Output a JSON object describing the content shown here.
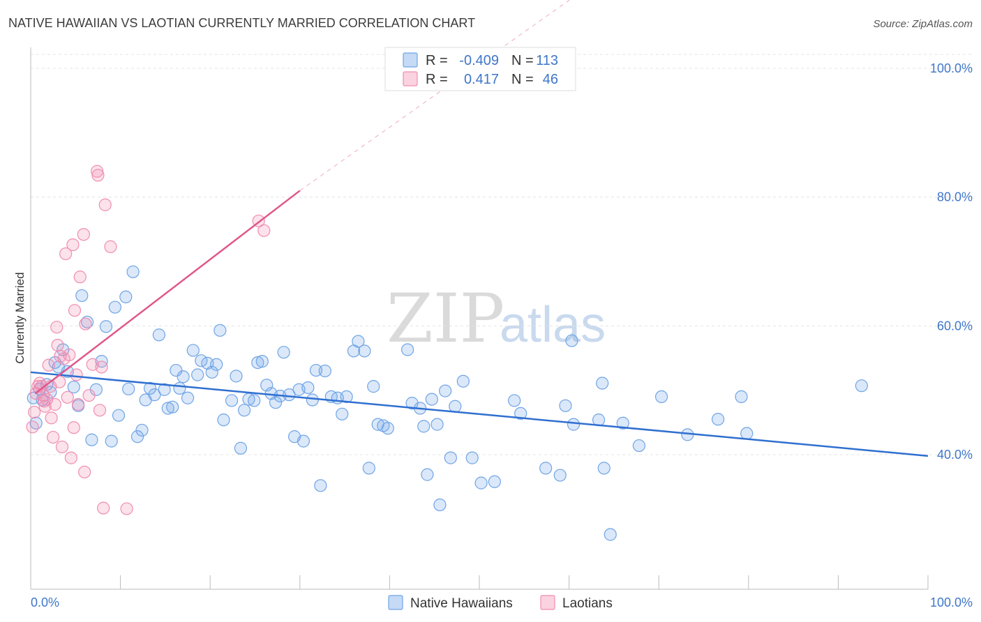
{
  "header": {
    "title": "NATIVE HAWAIIAN VS LAOTIAN CURRENTLY MARRIED CORRELATION CHART",
    "source": "Source: ZipAtlas.com"
  },
  "watermark": {
    "zip": "ZIP",
    "atlas": "atlas"
  },
  "stats_legend": {
    "rows": [
      {
        "r_label": "R =",
        "r_value": "-0.409",
        "n_label": "N =",
        "n_value": "113",
        "color": "#6fa4e6"
      },
      {
        "r_label": "R =",
        "r_value": "0.417",
        "n_label": "N =",
        "n_value": "46",
        "color": "#f08db0"
      }
    ]
  },
  "bottom_legend": {
    "items": [
      {
        "label": "Native Hawaiians",
        "color": "#6fa4e6"
      },
      {
        "label": "Laotians",
        "color": "#f08db0"
      }
    ]
  },
  "chart_data": {
    "type": "scatter",
    "xlabel": "",
    "ylabel": "Currently Married",
    "xlim": [
      0,
      100
    ],
    "ylim": [
      20,
      100
    ],
    "x_tick_labels": [
      "0.0%",
      "100.0%"
    ],
    "y_ticks": [
      {
        "value": 40,
        "label": "40.0%"
      },
      {
        "value": 60,
        "label": "60.0%"
      },
      {
        "value": 80,
        "label": "80.0%"
      },
      {
        "value": 100,
        "label": "100.0%"
      }
    ],
    "grid": true,
    "series": [
      {
        "name": "Native Hawaiians",
        "color": "#6fa4e6",
        "line_color": "#2f6fd0",
        "trend": {
          "x0": 0,
          "y0": 52.8,
          "x1": 100,
          "y1": 39.8,
          "dashed_to": null
        },
        "points": [
          [
            0.3,
            48.8
          ],
          [
            0.6,
            44.9
          ],
          [
            1.0,
            50.2
          ],
          [
            1.3,
            48.5
          ],
          [
            1.8,
            50.9
          ],
          [
            2.2,
            49.7
          ],
          [
            2.7,
            54.3
          ],
          [
            3.1,
            53.6
          ],
          [
            3.6,
            56.3
          ],
          [
            4.1,
            52.9
          ],
          [
            4.8,
            50.5
          ],
          [
            5.3,
            47.6
          ],
          [
            5.7,
            64.7
          ],
          [
            6.3,
            60.6
          ],
          [
            6.8,
            42.3
          ],
          [
            7.3,
            50.1
          ],
          [
            7.9,
            54.5
          ],
          [
            8.4,
            59.9
          ],
          [
            9.0,
            42.1
          ],
          [
            9.4,
            62.9
          ],
          [
            9.8,
            46.1
          ],
          [
            10.6,
            64.5
          ],
          [
            10.9,
            50.2
          ],
          [
            11.4,
            68.4
          ],
          [
            11.9,
            42.8
          ],
          [
            12.4,
            43.8
          ],
          [
            12.8,
            48.5
          ],
          [
            13.3,
            50.3
          ],
          [
            13.8,
            49.3
          ],
          [
            14.3,
            58.6
          ],
          [
            14.9,
            50.1
          ],
          [
            15.3,
            47.2
          ],
          [
            15.8,
            47.4
          ],
          [
            16.2,
            53.1
          ],
          [
            16.6,
            50.3
          ],
          [
            17.0,
            52.1
          ],
          [
            17.5,
            48.8
          ],
          [
            18.1,
            56.2
          ],
          [
            18.6,
            52.4
          ],
          [
            19.0,
            54.6
          ],
          [
            19.7,
            54.2
          ],
          [
            20.2,
            52.8
          ],
          [
            20.7,
            54.0
          ],
          [
            21.1,
            59.3
          ],
          [
            21.5,
            45.4
          ],
          [
            22.4,
            48.4
          ],
          [
            22.9,
            52.2
          ],
          [
            23.4,
            41.0
          ],
          [
            23.8,
            46.9
          ],
          [
            24.3,
            48.6
          ],
          [
            24.9,
            48.4
          ],
          [
            25.3,
            54.3
          ],
          [
            25.8,
            54.5
          ],
          [
            26.3,
            50.8
          ],
          [
            26.8,
            49.5
          ],
          [
            27.3,
            48.1
          ],
          [
            27.8,
            49.1
          ],
          [
            28.2,
            55.9
          ],
          [
            28.8,
            49.3
          ],
          [
            29.4,
            42.8
          ],
          [
            29.9,
            50.1
          ],
          [
            30.4,
            42.1
          ],
          [
            30.9,
            50.4
          ],
          [
            31.4,
            48.5
          ],
          [
            31.8,
            53.1
          ],
          [
            32.3,
            35.2
          ],
          [
            32.8,
            53.0
          ],
          [
            33.5,
            49.0
          ],
          [
            34.2,
            48.8
          ],
          [
            34.7,
            46.3
          ],
          [
            35.2,
            49.0
          ],
          [
            36.0,
            56.1
          ],
          [
            36.5,
            57.6
          ],
          [
            37.2,
            56.1
          ],
          [
            37.7,
            37.9
          ],
          [
            38.2,
            50.6
          ],
          [
            38.7,
            44.7
          ],
          [
            39.3,
            44.5
          ],
          [
            39.8,
            44.1
          ],
          [
            42.0,
            56.3
          ],
          [
            42.5,
            48.0
          ],
          [
            43.4,
            47.2
          ],
          [
            43.8,
            44.4
          ],
          [
            44.2,
            36.9
          ],
          [
            44.7,
            48.6
          ],
          [
            45.3,
            44.7
          ],
          [
            45.6,
            32.2
          ],
          [
            46.2,
            49.9
          ],
          [
            46.8,
            39.5
          ],
          [
            47.3,
            47.5
          ],
          [
            48.2,
            51.4
          ],
          [
            49.2,
            39.5
          ],
          [
            50.2,
            35.6
          ],
          [
            51.7,
            35.8
          ],
          [
            53.9,
            48.4
          ],
          [
            54.6,
            46.4
          ],
          [
            57.4,
            37.9
          ],
          [
            59.0,
            36.8
          ],
          [
            59.6,
            47.6
          ],
          [
            60.3,
            57.7
          ],
          [
            60.5,
            44.7
          ],
          [
            63.3,
            45.4
          ],
          [
            63.7,
            51.1
          ],
          [
            63.9,
            37.9
          ],
          [
            64.6,
            27.6
          ],
          [
            66.0,
            44.9
          ],
          [
            67.8,
            41.4
          ],
          [
            70.3,
            49.0
          ],
          [
            73.2,
            43.1
          ],
          [
            76.6,
            45.5
          ],
          [
            79.2,
            49.0
          ],
          [
            79.8,
            43.3
          ],
          [
            92.6,
            50.7
          ]
        ]
      },
      {
        "name": "Laotians",
        "color": "#f08db0",
        "line_color": "#e0578a",
        "trend": {
          "x0": 0.5,
          "y0": 49.5,
          "x1": 30.0,
          "y1": 81.0,
          "dashed_to": {
            "x": 100,
            "y": 150
          }
        },
        "points": [
          [
            0.2,
            44.3
          ],
          [
            0.4,
            46.6
          ],
          [
            0.6,
            49.5
          ],
          [
            0.8,
            50.6
          ],
          [
            1.0,
            51.1
          ],
          [
            1.2,
            50.6
          ],
          [
            1.4,
            49.2
          ],
          [
            1.6,
            47.5
          ],
          [
            1.8,
            48.6
          ],
          [
            2.0,
            53.9
          ],
          [
            2.2,
            50.6
          ],
          [
            2.3,
            45.7
          ],
          [
            2.5,
            42.7
          ],
          [
            2.7,
            47.8
          ],
          [
            2.9,
            59.8
          ],
          [
            3.0,
            57.0
          ],
          [
            3.2,
            51.3
          ],
          [
            3.3,
            55.3
          ],
          [
            3.5,
            41.2
          ],
          [
            3.7,
            54.9
          ],
          [
            3.9,
            71.2
          ],
          [
            4.1,
            48.9
          ],
          [
            4.3,
            55.5
          ],
          [
            4.5,
            39.5
          ],
          [
            4.7,
            72.6
          ],
          [
            4.8,
            44.2
          ],
          [
            4.9,
            62.4
          ],
          [
            5.1,
            52.4
          ],
          [
            5.3,
            47.8
          ],
          [
            5.5,
            67.6
          ],
          [
            5.9,
            74.2
          ],
          [
            6.0,
            37.3
          ],
          [
            6.1,
            60.3
          ],
          [
            6.5,
            49.2
          ],
          [
            6.9,
            54.0
          ],
          [
            7.4,
            84.0
          ],
          [
            7.5,
            83.4
          ],
          [
            7.7,
            46.9
          ],
          [
            7.9,
            53.6
          ],
          [
            8.1,
            31.7
          ],
          [
            8.3,
            78.8
          ],
          [
            8.9,
            72.3
          ],
          [
            10.7,
            31.6
          ],
          [
            25.4,
            76.3
          ],
          [
            26.0,
            74.8
          ],
          [
            1.5,
            48.3
          ]
        ]
      }
    ]
  }
}
